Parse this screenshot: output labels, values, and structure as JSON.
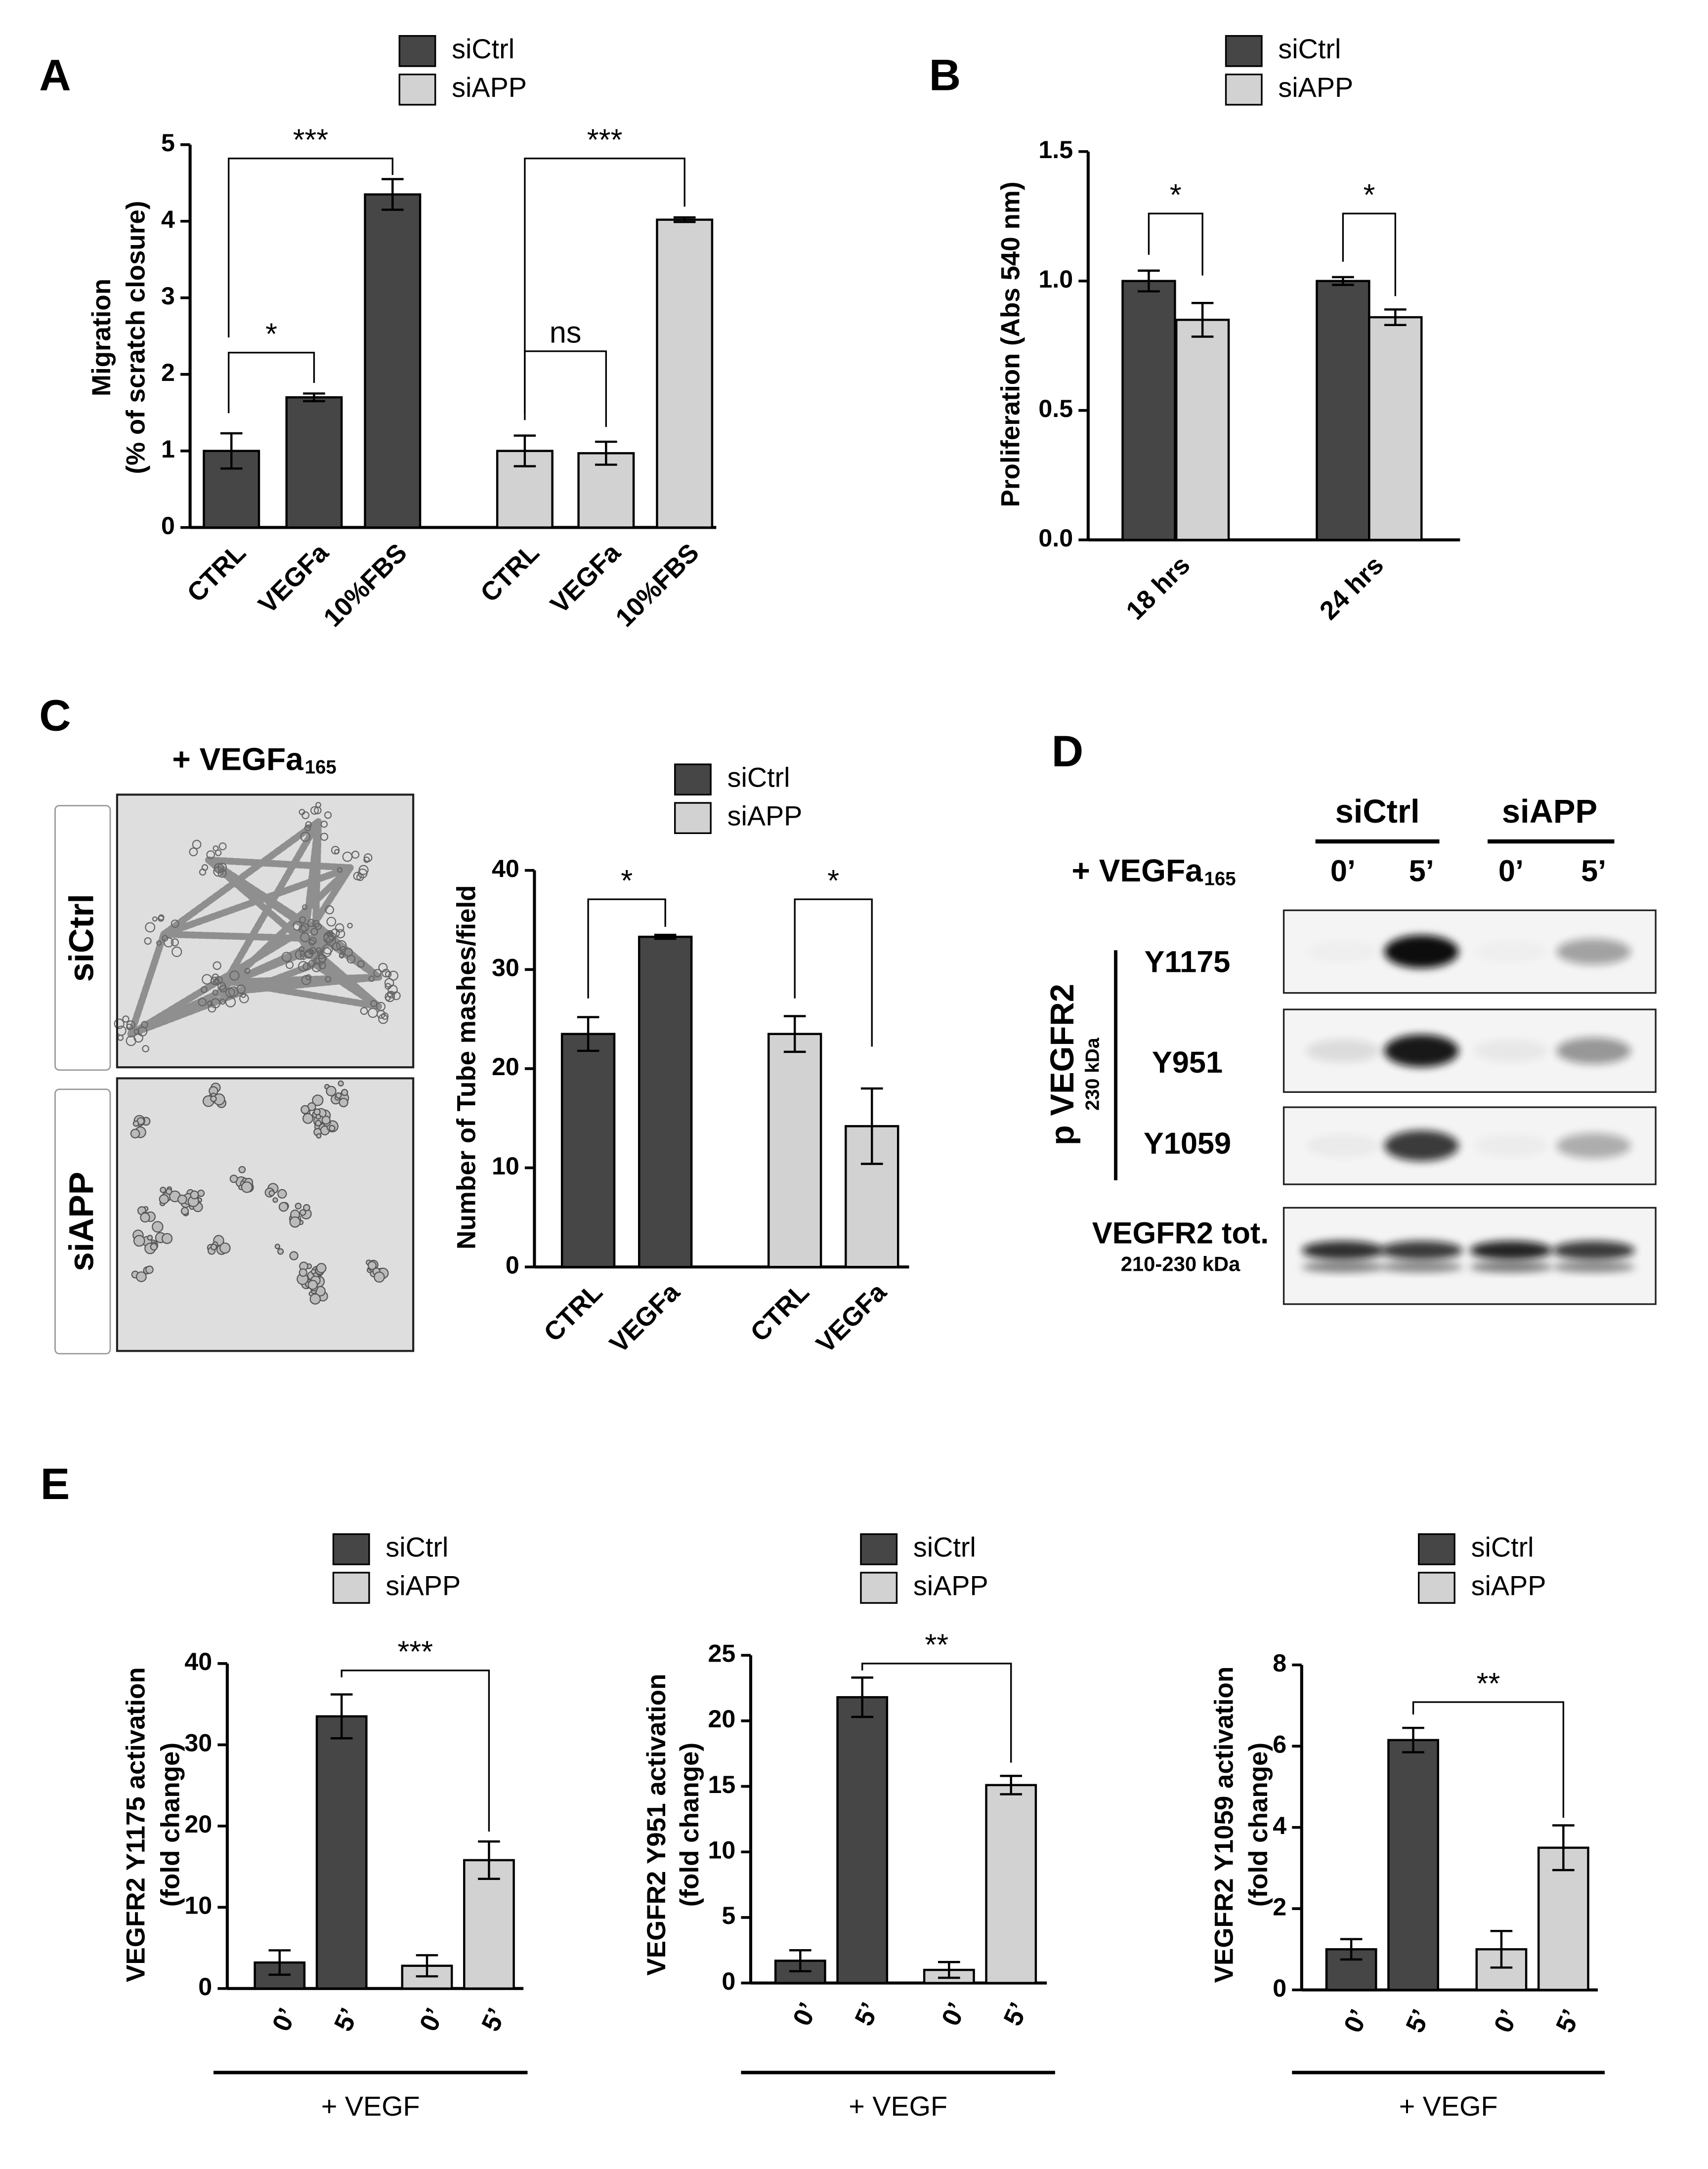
{
  "chart_data": [
    {
      "type": "bar",
      "panel": "A",
      "ylabel": [
        "Migration",
        "(% of scratch closure)"
      ],
      "categories": [
        "CTRL",
        "VEGFa",
        "10%FBS"
      ],
      "series": [
        {
          "name": "siCtrl",
          "color": "#464646",
          "values": [
            1,
            1.7,
            4.35
          ],
          "errors": [
            0.23,
            0.05,
            0.2
          ]
        },
        {
          "name": "siAPP",
          "color": "#d2d2d2",
          "values": [
            1,
            0.97,
            4.02
          ],
          "errors": [
            0.2,
            0.15,
            0.03
          ]
        }
      ],
      "ylim": [
        0,
        5
      ],
      "yticks": [
        0,
        1,
        2,
        3,
        4,
        5
      ],
      "annotations": [
        "***",
        "*",
        "***",
        "ns"
      ]
    },
    {
      "type": "bar",
      "panel": "B",
      "ylabel": [
        "Proliferation (Abs 540 nm)"
      ],
      "categories": [
        "18 hrs",
        "24 hrs"
      ],
      "series": [
        {
          "name": "siCtrl",
          "color": "#464646",
          "values": [
            1.0,
            1.0
          ],
          "errors": [
            0.04,
            0.015
          ]
        },
        {
          "name": "siAPP",
          "color": "#d2d2d2",
          "values": [
            0.85,
            0.86
          ],
          "errors": [
            0.065,
            0.03
          ]
        }
      ],
      "ylim": [
        0,
        1.5
      ],
      "yticks": [
        {
          "value": 0,
          "label": "0.0"
        },
        {
          "value": 0.5,
          "label": "0.5"
        },
        {
          "value": 1,
          "label": "1.0"
        },
        {
          "value": 1.5,
          "label": "1.5"
        }
      ],
      "annotations": [
        "*",
        "*"
      ]
    },
    {
      "type": "bar",
      "ylabel": [
        "Number of Tube mashes/field"
      ],
      "categories": [
        "CTRL",
        "VEGFa"
      ],
      "series": [
        {
          "name": "siCtrl",
          "color": "#464646",
          "values": [
            23.5,
            33.3
          ],
          "errors": [
            1.7,
            0.2
          ]
        },
        {
          "name": "siAPP",
          "color": "#d2d2d2",
          "values": [
            23.5,
            14.2
          ],
          "errors": [
            1.8,
            3.8
          ]
        }
      ],
      "ylim": [
        0,
        40
      ],
      "yticks": [
        0,
        10,
        20,
        30,
        40
      ],
      "annotations": [
        "*",
        "*"
      ]
    },
    {
      "type": "bar",
      "panel": "E",
      "ylabel": [
        "VEGFR2 Y1175 activation",
        "(fold change)"
      ],
      "xlabel": "+ VEGF",
      "categories": [
        "0’",
        "5’"
      ],
      "series": [
        {
          "name": "siCtrl",
          "color": "#464646",
          "values": [
            3.2,
            33.5
          ],
          "errors": [
            1.5,
            2.7
          ]
        },
        {
          "name": "siAPP",
          "color": "#d2d2d2",
          "values": [
            2.8,
            15.8
          ],
          "errors": [
            1.3,
            2.3
          ]
        }
      ],
      "ylim": [
        0,
        40
      ],
      "yticks": [
        0,
        10,
        20,
        30,
        40
      ],
      "annotations": [
        "***"
      ]
    },
    {
      "type": "bar",
      "ylabel": [
        "VEGFR2 Y951 activation",
        "(fold change)"
      ],
      "xlabel": "+ VEGF",
      "categories": [
        "0’",
        "5’"
      ],
      "series": [
        {
          "name": "siCtrl",
          "color": "#464646",
          "values": [
            1.7,
            21.8
          ],
          "errors": [
            0.8,
            1.5
          ]
        },
        {
          "name": "siAPP",
          "color": "#d2d2d2",
          "values": [
            1.0,
            15.1
          ],
          "errors": [
            0.6,
            0.7
          ]
        }
      ],
      "ylim": [
        0,
        25
      ],
      "yticks": [
        0,
        5,
        10,
        15,
        20,
        25
      ],
      "annotations": [
        "**"
      ]
    },
    {
      "type": "bar",
      "ylabel": [
        "VEGFR2 Y1059 activation",
        "(fold change)"
      ],
      "xlabel": "+ VEGF",
      "categories": [
        "0’",
        "5’"
      ],
      "series": [
        {
          "name": "siCtrl",
          "color": "#464646",
          "values": [
            1.0,
            6.15
          ],
          "errors": [
            0.25,
            0.3
          ]
        },
        {
          "name": "siAPP",
          "color": "#d2d2d2",
          "values": [
            1.0,
            3.5
          ],
          "errors": [
            0.45,
            0.55
          ]
        }
      ],
      "ylim": [
        0,
        8
      ],
      "yticks": [
        0,
        2,
        4,
        6,
        8
      ],
      "annotations": [
        "**"
      ]
    }
  ],
  "micrograph": {
    "panel": "C",
    "treatment": "+ VEGFa",
    "treatment_sub": "165",
    "rows": [
      "siCtrl",
      "siAPP"
    ]
  },
  "blot": {
    "panel": "D",
    "groups": [
      "siCtrl",
      "siAPP"
    ],
    "treatment": "+ VEGFa",
    "treatment_sub": "165",
    "times": [
      "0’",
      "5’",
      "0’",
      "5’"
    ],
    "phospho_label": "p VEGFR2",
    "phospho_sub": "230 kDa",
    "sites": [
      "Y1175",
      "Y951",
      "Y1059"
    ],
    "total_label": "VEGFR2 tot.",
    "total_sub": "210-230 kDa"
  }
}
